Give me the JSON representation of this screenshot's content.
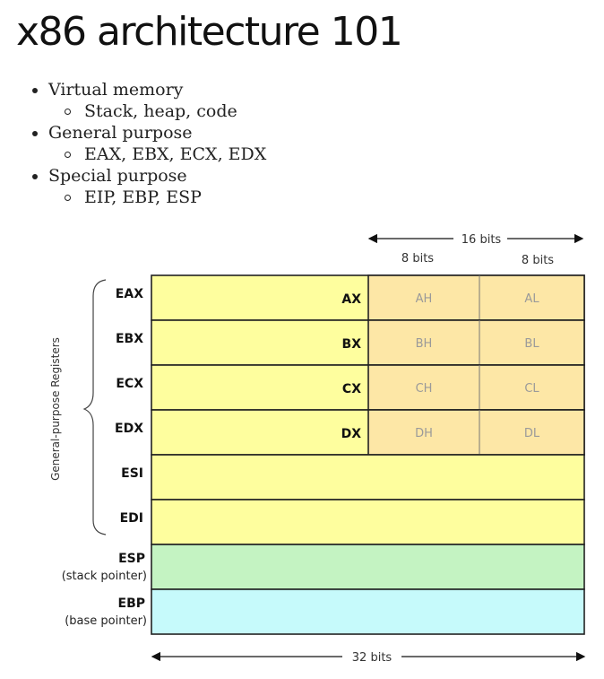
{
  "slide": {
    "title": "x86 architecture 101",
    "bullets": [
      {
        "text": "Virtual memory",
        "sub": "Stack, heap, code"
      },
      {
        "text": "General purpose",
        "sub": "EAX, EBX, ECX, EDX"
      },
      {
        "text": "Special purpose",
        "sub": "EIP, EBP, ESP"
      }
    ]
  },
  "diagram": {
    "bits_labels": {
      "top_span": "16 bits",
      "high_byte": "8 bits",
      "low_byte": "8 bits",
      "bottom_span": "32 bits"
    },
    "side_label": "General-purpose Registers",
    "colors": {
      "general": "#fefe9e",
      "byte_halves": "#fde7a6",
      "stack_pointer": "#c4f3c2",
      "base_pointer": "#c6fafb",
      "border": "#222222"
    },
    "registers": [
      {
        "name": "EAX",
        "word": "AX",
        "high": "AH",
        "low": "AL"
      },
      {
        "name": "EBX",
        "word": "BX",
        "high": "BH",
        "low": "BL"
      },
      {
        "name": "ECX",
        "word": "CX",
        "high": "CH",
        "low": "CL"
      },
      {
        "name": "EDX",
        "word": "DX",
        "high": "DH",
        "low": "DL"
      },
      {
        "name": "ESI"
      },
      {
        "name": "EDI"
      },
      {
        "name": "ESP",
        "desc": "(stack pointer)"
      },
      {
        "name": "EBP",
        "desc": "(base pointer)"
      }
    ]
  }
}
